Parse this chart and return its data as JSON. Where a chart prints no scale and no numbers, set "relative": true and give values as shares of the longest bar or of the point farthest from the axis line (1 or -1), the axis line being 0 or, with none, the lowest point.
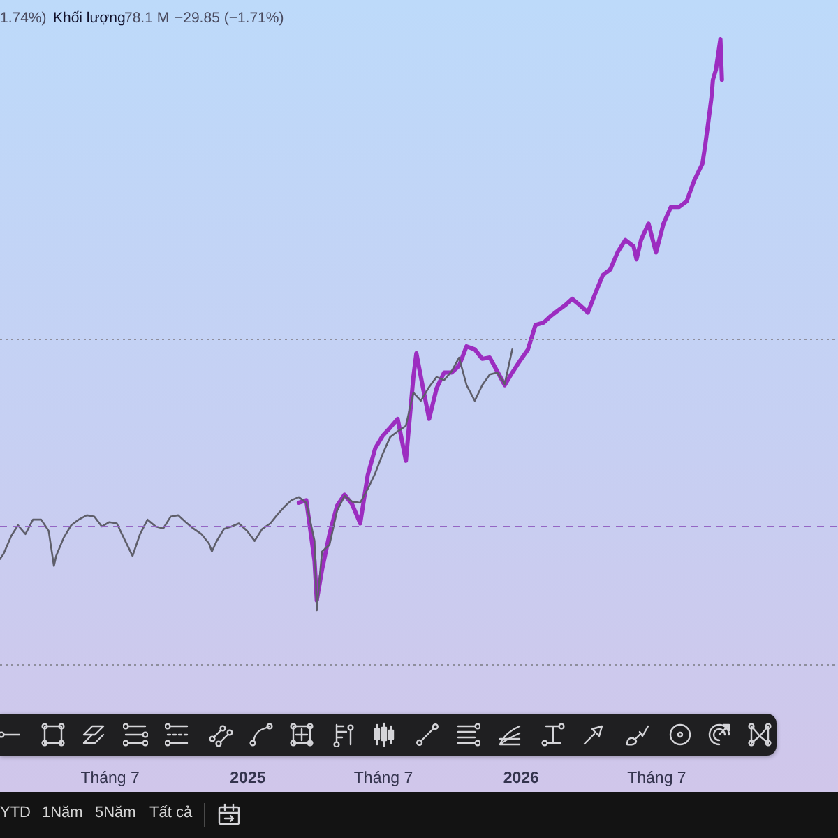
{
  "chart_data": {
    "type": "line",
    "relative": true,
    "tick_labels": "x",
    "annotations": [
      "1.74%)",
      "Khối lượng",
      "78.1 M",
      "−29.85 (−1.71%)",
      "YTD",
      "1Năm",
      "5Năm",
      "Tất cả"
    ],
    "xlim": [
      "2024-02-06",
      "2027-03-01"
    ],
    "xticks": [
      {
        "value": "2024-07-01",
        "label": "Tháng 7"
      },
      {
        "value": "2025-01-01",
        "label": "2025"
      },
      {
        "value": "2025-07-01",
        "label": "Tháng 7"
      },
      {
        "value": "2026-01-01",
        "label": "2026"
      },
      {
        "value": "2026-07-01",
        "label": "Tháng 7"
      }
    ],
    "ref_lines": [
      {
        "axis": "y",
        "value": 0.52,
        "color": "#8e8e9c",
        "line_style": "dotted"
      },
      {
        "axis": "y",
        "value": 0.221,
        "color": "#9466c4",
        "line_style": "dashed"
      },
      {
        "axis": "y",
        "value": 0,
        "color": "#8e8e9c",
        "line_style": "dotted"
      }
    ],
    "series": [
      {
        "color": "#9c2dc0",
        "x": [
          "2025-03-11",
          "2025-03-21",
          "2025-04-01",
          "2025-04-04",
          "2025-04-11",
          "2025-04-21",
          "2025-05-01",
          "2025-05-11",
          "2025-05-21",
          "2025-06-01",
          "2025-06-11",
          "2025-06-21",
          "2025-07-01",
          "2025-07-11",
          "2025-07-21",
          "2025-08-01",
          "2025-08-11",
          "2025-08-15",
          "2025-08-21",
          "2025-09-01",
          "2025-09-11",
          "2025-09-21",
          "2025-10-01",
          "2025-10-11",
          "2025-10-21",
          "2025-11-01",
          "2025-11-11",
          "2025-11-21",
          "2025-12-01",
          "2025-12-11",
          "2025-12-21",
          "2026-01-01",
          "2026-01-11",
          "2026-01-21",
          "2026-02-01",
          "2026-02-11",
          "2026-02-21",
          "2026-03-01",
          "2026-03-11",
          "2026-03-21",
          "2026-04-01",
          "2026-04-11",
          "2026-04-21",
          "2026-05-01",
          "2026-05-11",
          "2026-05-21",
          "2026-06-01",
          "2026-06-05",
          "2026-06-11",
          "2026-06-21",
          "2026-07-01",
          "2026-07-11",
          "2026-07-21",
          "2026-08-01",
          "2026-08-11",
          "2026-08-21",
          "2026-09-01",
          "2026-09-05",
          "2026-09-09",
          "2026-09-13",
          "2026-09-15",
          "2026-09-19",
          "2026-09-23",
          "2026-09-25",
          "2026-09-27"
        ],
        "values": [
          0.259,
          0.263,
          0.166,
          0.103,
          0.152,
          0.209,
          0.254,
          0.272,
          0.257,
          0.226,
          0.303,
          0.346,
          0.366,
          0.379,
          0.393,
          0.326,
          0.46,
          0.498,
          0.46,
          0.393,
          0.442,
          0.467,
          0.467,
          0.478,
          0.509,
          0.504,
          0.489,
          0.491,
          0.469,
          0.447,
          0.467,
          0.487,
          0.504,
          0.543,
          0.547,
          0.558,
          0.567,
          0.574,
          0.585,
          0.575,
          0.563,
          0.594,
          0.623,
          0.632,
          0.66,
          0.679,
          0.669,
          0.648,
          0.679,
          0.705,
          0.659,
          0.705,
          0.732,
          0.732,
          0.741,
          0.774,
          0.801,
          0.833,
          0.869,
          0.906,
          0.935,
          0.951,
          0.984,
          1,
          0.935
        ]
      },
      {
        "color": "#5e5e6a",
        "x": [
          "2024-02-06",
          "2024-02-11",
          "2024-02-21",
          "2024-03-01",
          "2024-03-11",
          "2024-03-21",
          "2024-04-01",
          "2024-04-11",
          "2024-04-18",
          "2024-04-21",
          "2024-05-01",
          "2024-05-11",
          "2024-05-21",
          "2024-06-01",
          "2024-06-11",
          "2024-06-21",
          "2024-07-01",
          "2024-07-11",
          "2024-07-21",
          "2024-08-01",
          "2024-08-11",
          "2024-08-21",
          "2024-09-01",
          "2024-09-11",
          "2024-09-21",
          "2024-10-01",
          "2024-10-11",
          "2024-10-21",
          "2024-11-01",
          "2024-11-11",
          "2024-11-15",
          "2024-11-21",
          "2024-12-01",
          "2024-12-11",
          "2024-12-21",
          "2025-01-01",
          "2025-01-11",
          "2025-01-21",
          "2025-02-01",
          "2025-02-11",
          "2025-02-21",
          "2025-03-01",
          "2025-03-11",
          "2025-03-21",
          "2025-04-01",
          "2025-04-04",
          "2025-04-11",
          "2025-04-21",
          "2025-05-01",
          "2025-05-11",
          "2025-05-21",
          "2025-06-01",
          "2025-06-11",
          "2025-06-21",
          "2025-07-01",
          "2025-07-11",
          "2025-07-21",
          "2025-08-01",
          "2025-08-11",
          "2025-08-21",
          "2025-09-01",
          "2025-09-11",
          "2025-09-21",
          "2025-10-01",
          "2025-10-11",
          "2025-10-21",
          "2025-11-01",
          "2025-11-11",
          "2025-11-21",
          "2025-12-01",
          "2025-12-11",
          "2025-12-21"
        ],
        "values": [
          0.169,
          0.178,
          0.206,
          0.223,
          0.209,
          0.232,
          0.232,
          0.214,
          0.158,
          0.174,
          0.203,
          0.223,
          0.232,
          0.239,
          0.237,
          0.221,
          0.228,
          0.226,
          0.201,
          0.174,
          0.209,
          0.232,
          0.221,
          0.218,
          0.237,
          0.239,
          0.228,
          0.218,
          0.209,
          0.194,
          0.181,
          0.197,
          0.217,
          0.221,
          0.226,
          0.214,
          0.198,
          0.217,
          0.226,
          0.241,
          0.254,
          0.263,
          0.268,
          0.259,
          0.198,
          0.087,
          0.181,
          0.192,
          0.246,
          0.27,
          0.261,
          0.259,
          0.281,
          0.306,
          0.337,
          0.364,
          0.373,
          0.382,
          0.435,
          0.422,
          0.444,
          0.46,
          0.455,
          0.469,
          0.491,
          0.447,
          0.422,
          0.447,
          0.464,
          0.467,
          0.449,
          0.504
        ]
      }
    ]
  }
}
